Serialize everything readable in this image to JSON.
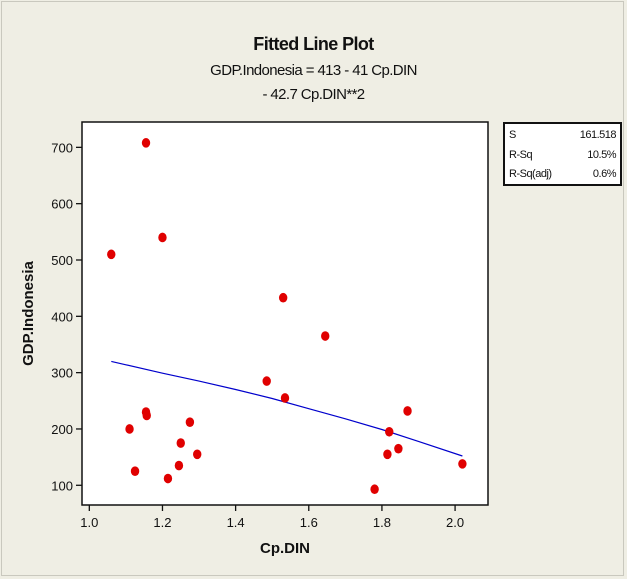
{
  "chart_data": {
    "type": "scatter",
    "title": "Fitted Line Plot",
    "equation_line1": "GDP.Indonesia = 413 - 41 Cp.DIN",
    "equation_line2": "- 42.7 Cp.DIN**2",
    "xlabel": "Cp.DIN",
    "ylabel": "GDP.Indonesia",
    "xlim": [
      0.98,
      2.09
    ],
    "ylim": [
      65,
      745
    ],
    "xticks": [
      1.0,
      1.2,
      1.4,
      1.6,
      1.8,
      2.0
    ],
    "yticks": [
      100,
      200,
      300,
      400,
      500,
      600,
      700
    ],
    "grid": false,
    "points": [
      {
        "x": 1.06,
        "y": 510
      },
      {
        "x": 1.11,
        "y": 200
      },
      {
        "x": 1.125,
        "y": 125
      },
      {
        "x": 1.155,
        "y": 708
      },
      {
        "x": 1.155,
        "y": 230
      },
      {
        "x": 1.157,
        "y": 224
      },
      {
        "x": 1.2,
        "y": 540
      },
      {
        "x": 1.215,
        "y": 112
      },
      {
        "x": 1.245,
        "y": 135
      },
      {
        "x": 1.25,
        "y": 175
      },
      {
        "x": 1.275,
        "y": 212
      },
      {
        "x": 1.295,
        "y": 155
      },
      {
        "x": 1.485,
        "y": 285
      },
      {
        "x": 1.53,
        "y": 433
      },
      {
        "x": 1.535,
        "y": 255
      },
      {
        "x": 1.645,
        "y": 365
      },
      {
        "x": 1.78,
        "y": 93
      },
      {
        "x": 1.815,
        "y": 155
      },
      {
        "x": 1.82,
        "y": 195
      },
      {
        "x": 1.845,
        "y": 165
      },
      {
        "x": 1.87,
        "y": 232
      },
      {
        "x": 2.02,
        "y": 138
      }
    ],
    "fit_line": [
      {
        "x": 1.06,
        "y": 320
      },
      {
        "x": 1.1,
        "y": 314
      },
      {
        "x": 1.2,
        "y": 299
      },
      {
        "x": 1.3,
        "y": 285
      },
      {
        "x": 1.4,
        "y": 270
      },
      {
        "x": 1.5,
        "y": 254
      },
      {
        "x": 1.6,
        "y": 236
      },
      {
        "x": 1.7,
        "y": 218
      },
      {
        "x": 1.8,
        "y": 199
      },
      {
        "x": 1.9,
        "y": 178
      },
      {
        "x": 2.02,
        "y": 152
      }
    ],
    "stats": [
      {
        "label": "S",
        "value": "161.518"
      },
      {
        "label": "R-Sq",
        "value": "10.5%"
      },
      {
        "label": "R-Sq(adj)",
        "value": "0.6%"
      }
    ],
    "colors": {
      "points": "#e00000",
      "fit_line": "#0000cc",
      "background": "#efeee4",
      "plot_area": "#ffffff"
    }
  }
}
